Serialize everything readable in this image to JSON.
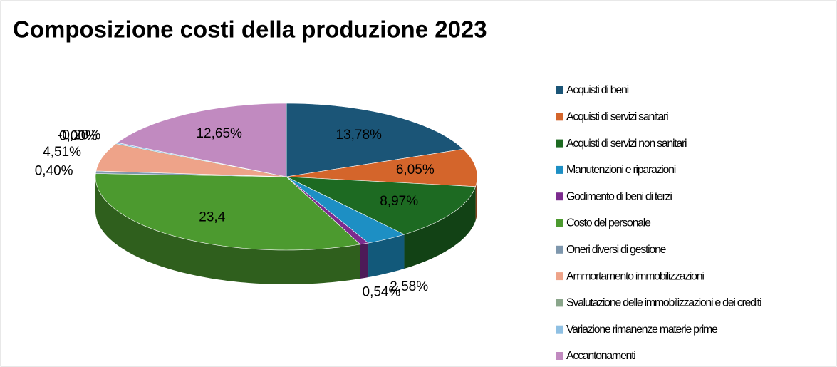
{
  "chart_data": {
    "type": "pie3d",
    "title": "Composizione costi della produzione 2023",
    "categories": [
      "Acquisti di beni",
      "Acquisti di servizi sanitari",
      "Acquisti di servizi non sanitari",
      "Manutenzioni e riparazioni",
      "Godimento di beni di terzi",
      "Costo del personale",
      "Oneri diversi di gestione",
      "Ammortamento immobilizzazioni",
      "Svalutazione delle immobilizzazioni e dei crediti",
      "Variazione rimanenze materie prime",
      "Accantonamenti"
    ],
    "values": [
      13.78,
      6.05,
      8.97,
      2.58,
      0.54,
      23.4,
      0.4,
      4.51,
      0.0,
      -0.2,
      12.65
    ],
    "value_labels": [
      "13,78%",
      "6,05%",
      "8,97%",
      "2,58%",
      "0,54%",
      "23,4",
      "0,40%",
      "4,51%",
      "0,00%",
      "-0,20%",
      "12,65%"
    ],
    "colors": [
      "#1b5577",
      "#d4652b",
      "#1d6a22",
      "#1d8fc4",
      "#7c2b8e",
      "#4c9a2f",
      "#7e97ad",
      "#eea389",
      "#8aa68b",
      "#8fc0e3",
      "#c18ac0"
    ],
    "legend": "right"
  }
}
